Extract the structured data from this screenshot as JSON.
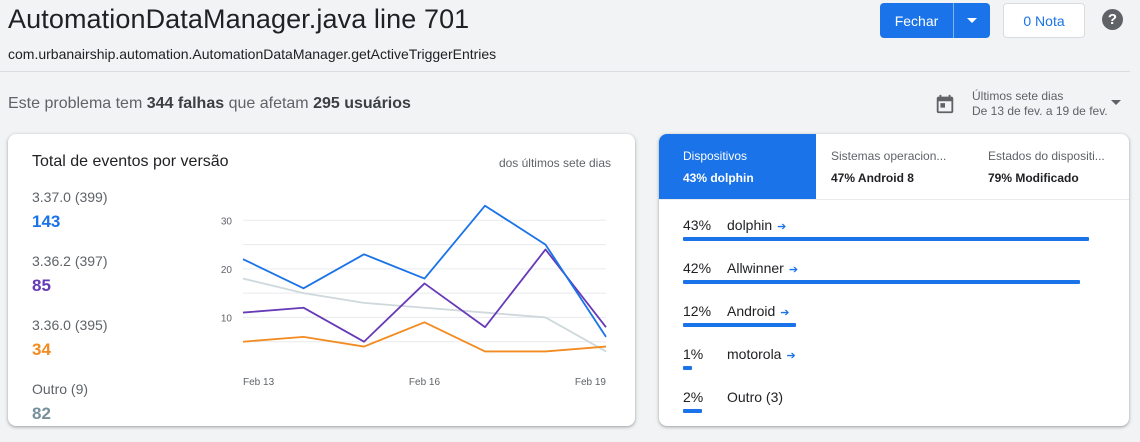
{
  "header": {
    "title": "AutomationDataManager.java line 701",
    "subtitle": "com.urbanairship.automation.AutomationDataManager.getActiveTriggerEntries",
    "close_button": "Fechar",
    "note_button": "0 Nota",
    "help": "?"
  },
  "summary": {
    "prefix": "Este problema tem",
    "failures": "344 falhas",
    "middle": "que afetam",
    "users": "295 usuários"
  },
  "date_range": {
    "label": "Últimos sete dias",
    "range": "De 13 de fev. a 19 de fev."
  },
  "events_card": {
    "title": "Total de eventos por versão",
    "period": "dos últimos sete dias",
    "legend": [
      {
        "label": "3.37.0 (399)",
        "value": "143",
        "color": "#1a73e8"
      },
      {
        "label": "3.36.2 (397)",
        "value": "85",
        "color": "#673ab7"
      },
      {
        "label": "3.36.0 (395)",
        "value": "34",
        "color": "#f28b20"
      },
      {
        "label": "Outro (9)",
        "value": "82",
        "color": "#78909c"
      }
    ]
  },
  "chart_data": {
    "type": "line",
    "x": [
      "Feb 13",
      "Feb 14",
      "Feb 15",
      "Feb 16",
      "Feb 17",
      "Feb 18",
      "Feb 19"
    ],
    "xticks": [
      "Feb 13",
      "Feb 16",
      "Feb 19"
    ],
    "yticks": [
      10,
      20,
      30
    ],
    "ylim": [
      0,
      35
    ],
    "series": [
      {
        "name": "3.37.0 (399)",
        "color": "#1a73e8",
        "values": [
          22,
          16,
          23,
          18,
          33,
          25,
          6
        ]
      },
      {
        "name": "3.36.2 (397)",
        "color": "#673ab7",
        "values": [
          11,
          12,
          5,
          17,
          8,
          24,
          8
        ]
      },
      {
        "name": "3.36.0 (395)",
        "color": "#f28b20",
        "values": [
          5,
          6,
          4,
          9,
          3,
          3,
          4
        ]
      },
      {
        "name": "Outro (9)",
        "color": "#cfd8dc",
        "values": [
          18,
          15,
          13,
          12,
          11,
          10,
          3
        ]
      }
    ]
  },
  "devices_card": {
    "tabs": [
      {
        "name": "Dispositivos",
        "value": "43% dolphin"
      },
      {
        "name": "Sistemas operacion...",
        "value": "47% Android 8"
      },
      {
        "name": "Estados do dispositi...",
        "value": "79% Modificado"
      }
    ],
    "rows": [
      {
        "pct": "43%",
        "name": "dolphin",
        "fraction": 1.0
      },
      {
        "pct": "42%",
        "name": "Allwinner",
        "fraction": 0.977
      },
      {
        "pct": "12%",
        "name": "Android",
        "fraction": 0.279
      },
      {
        "pct": "1%",
        "name": "motorola",
        "fraction": 0.023
      },
      {
        "pct": "2%",
        "name": "Outro (3)",
        "fraction": 0.047
      }
    ]
  }
}
